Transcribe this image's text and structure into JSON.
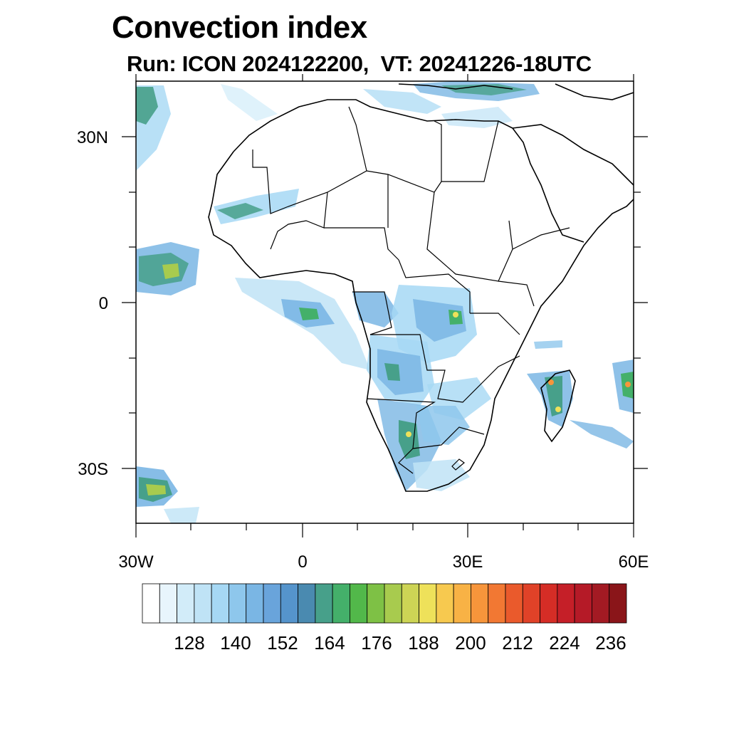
{
  "title": "Convection index",
  "subtitle": {
    "run_label": "Run: ICON 2024122200,",
    "vt_label": "VT: 20241226-18UTC"
  },
  "map": {
    "region": "Africa",
    "x_ticks": [
      {
        "value": -30,
        "label": "30W"
      },
      {
        "value": 0,
        "label": "0"
      },
      {
        "value": 30,
        "label": "30E"
      },
      {
        "value": 60,
        "label": "60E"
      }
    ],
    "y_ticks": [
      {
        "value": 30,
        "label": "30N"
      },
      {
        "value": 0,
        "label": "0"
      },
      {
        "value": -30,
        "label": "30S"
      }
    ]
  },
  "colorbar": {
    "labels": [
      "128",
      "140",
      "152",
      "164",
      "176",
      "188",
      "200",
      "212",
      "224",
      "236"
    ],
    "colors": [
      "#ffffff",
      "#e8f5fc",
      "#d2ecf9",
      "#bfe3f6",
      "#a6d8f4",
      "#8ec7ec",
      "#7ab6e4",
      "#69a4db",
      "#5594cc",
      "#4a8ab0",
      "#47a08a",
      "#44b06a",
      "#52b84a",
      "#7ec145",
      "#a8cb4e",
      "#cdd455",
      "#eee15a",
      "#f7c94f",
      "#f8b245",
      "#f7953b",
      "#f27833",
      "#ea5a2c",
      "#e04228",
      "#d52d26",
      "#c51f28",
      "#b51a27",
      "#a31a23",
      "#8a1519"
    ]
  }
}
